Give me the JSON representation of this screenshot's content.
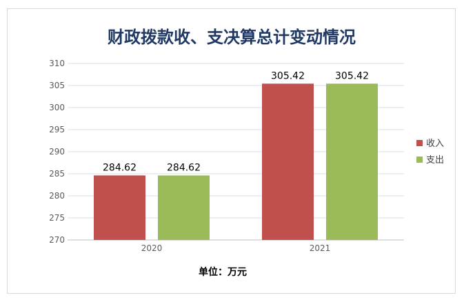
{
  "chart_data": {
    "type": "bar",
    "title": "财政拨款收、支决算总计变动情况",
    "categories": [
      "2020",
      "2021"
    ],
    "series": [
      {
        "name": "收入",
        "values": [
          284.62,
          305.42
        ],
        "labels": [
          "284.62",
          "305.42"
        ],
        "color": "#c0504d"
      },
      {
        "name": "支出",
        "values": [
          284.62,
          305.42
        ],
        "labels": [
          "284.62",
          "305.42"
        ],
        "color": "#9bbb59"
      }
    ],
    "ylim": [
      270,
      310
    ],
    "yticks": [
      "270",
      "275",
      "280",
      "285",
      "290",
      "295",
      "300",
      "305",
      "310"
    ],
    "grid": true,
    "legend": "right",
    "unit_note": "单位：万元"
  }
}
